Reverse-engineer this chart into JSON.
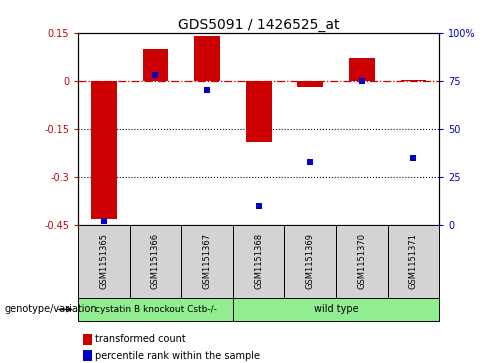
{
  "title": "GDS5091 / 1426525_at",
  "samples": [
    "GSM1151365",
    "GSM1151366",
    "GSM1151367",
    "GSM1151368",
    "GSM1151369",
    "GSM1151370",
    "GSM1151371"
  ],
  "red_values": [
    -0.43,
    0.1,
    0.14,
    -0.19,
    -0.02,
    0.07,
    0.002
  ],
  "blue_values_pct": [
    2,
    78,
    70,
    10,
    33,
    75,
    35
  ],
  "ylim_left": [
    -0.45,
    0.15
  ],
  "ylim_right": [
    0,
    100
  ],
  "yticks_left": [
    0.15,
    0,
    -0.15,
    -0.3,
    -0.45
  ],
  "yticks_right": [
    100,
    75,
    50,
    25,
    0
  ],
  "group_boundary": 3,
  "group1_label": "cystatin B knockout Cstb-/-",
  "group2_label": "wild type",
  "group_color": "#90EE90",
  "bar_color": "#CC0000",
  "dot_color": "#0000CC",
  "zero_line_color": "#CC0000",
  "dotted_line_color": "#000000",
  "bg_color": "#FFFFFF",
  "cell_color": "#D3D3D3",
  "tick_label_color_left": "#CC0000",
  "tick_label_color_right": "#0000CC",
  "legend_red_label": "transformed count",
  "legend_blue_label": "percentile rank within the sample",
  "genotype_label": "genotype/variation",
  "bar_width": 0.5
}
